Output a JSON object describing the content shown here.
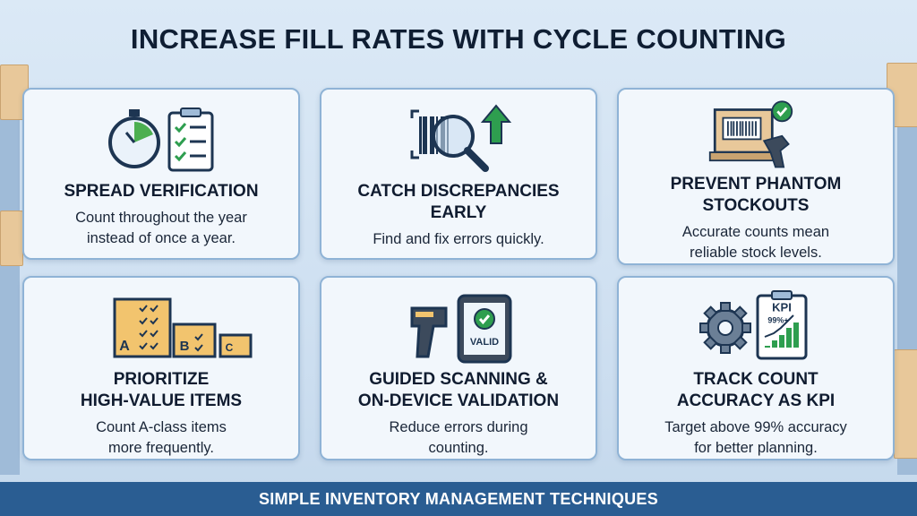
{
  "header": {
    "title": "INCREASE FILL RATES WITH CYCLE COUNTING"
  },
  "cards": [
    {
      "title_lines": [
        "SPREAD VERIFICATION"
      ],
      "description_lines": [
        "Count throughout the year",
        "instead of once a year."
      ]
    },
    {
      "title_lines": [
        "CATCH DISCREPANCIES",
        "EARLY"
      ],
      "description_lines": [
        "Find and fix errors quickly."
      ]
    },
    {
      "title_lines": [
        "PREVENT PHANTOM",
        "STOCKOUTS"
      ],
      "description_lines": [
        "Accurate counts mean",
        "reliable stock levels."
      ]
    },
    {
      "title_lines": [
        "PRIORITIZE",
        "HIGH-VALUE ITEMS"
      ],
      "description_lines": [
        "Count A-class items",
        "more frequently."
      ],
      "icon_labels": [
        "A",
        "B",
        "C"
      ]
    },
    {
      "title_lines": [
        "GUIDED SCANNING &",
        "ON-DEVICE VALIDATION"
      ],
      "description_lines": [
        "Reduce errors during",
        "counting."
      ],
      "icon_labels": [
        "VALID"
      ]
    },
    {
      "title_lines": [
        "TRACK COUNT",
        "ACCURACY AS KPI"
      ],
      "description_lines": [
        "Target above 99% accuracy",
        "for better planning."
      ],
      "icon_labels": [
        "KPI",
        "99%+"
      ]
    }
  ],
  "footer": {
    "text": "SIMPLE INVENTORY MANAGEMENT TECHNIQUES"
  }
}
